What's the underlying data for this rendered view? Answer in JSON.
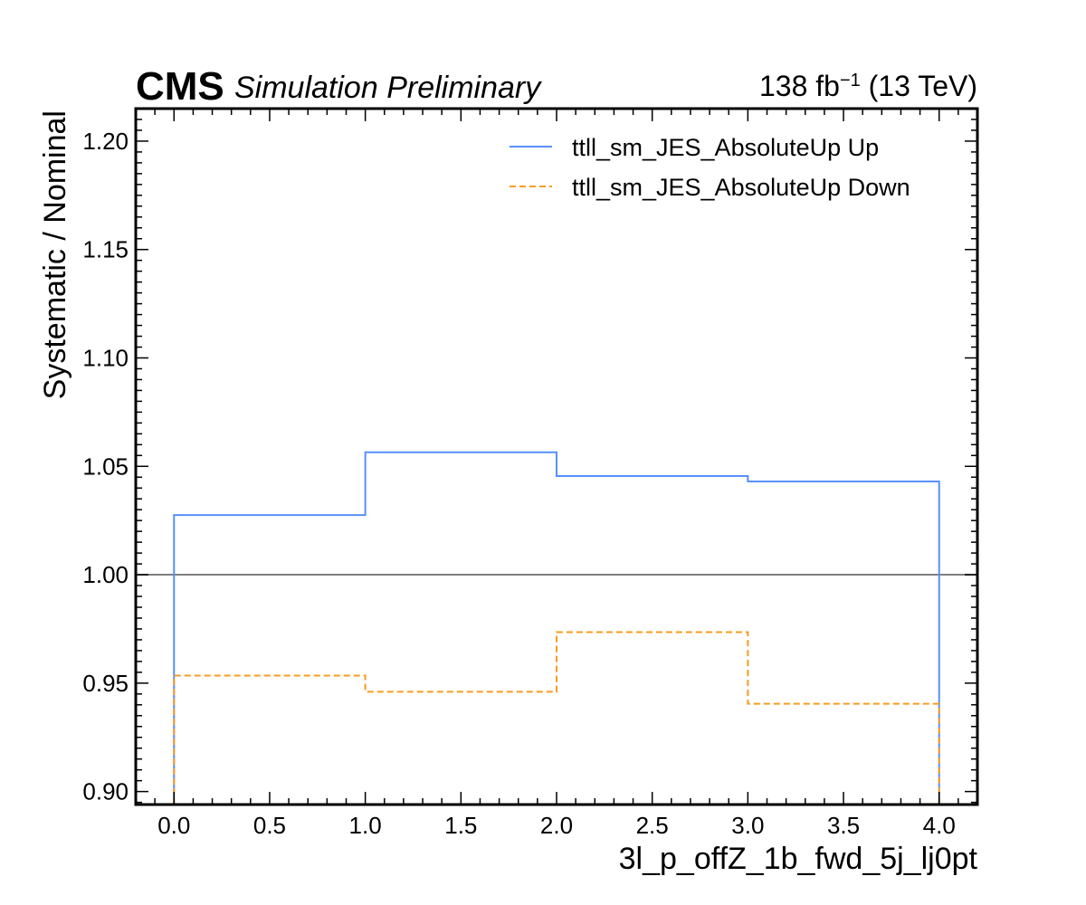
{
  "header": {
    "experiment": "CMS",
    "status": "Simulation Preliminary",
    "lumi_value": "138 fb",
    "lumi_exponent": "−1",
    "energy": " (13 TeV)"
  },
  "chart_data": {
    "type": "line",
    "drawstyle": "steps",
    "xlabel": "3l_p_offZ_1b_fwd_5j_lj0pt",
    "ylabel": "Systematic / Nominal",
    "xlim": [
      -0.2,
      4.2
    ],
    "ylim": [
      0.894,
      1.215
    ],
    "xticks": [
      0.0,
      0.5,
      1.0,
      1.5,
      2.0,
      2.5,
      3.0,
      3.5,
      4.0
    ],
    "xtick_labels": [
      "0.0",
      "0.5",
      "1.0",
      "1.5",
      "2.0",
      "2.5",
      "3.0",
      "3.5",
      "4.0"
    ],
    "yticks": [
      0.9,
      0.95,
      1.0,
      1.05,
      1.1,
      1.15,
      1.2
    ],
    "ytick_labels": [
      "0.90",
      "0.95",
      "1.00",
      "1.05",
      "1.10",
      "1.15",
      "1.20"
    ],
    "bin_edges": [
      0,
      1,
      2,
      3,
      4
    ],
    "reference_line": {
      "y": 1.0,
      "color": "#808080"
    },
    "grid": false,
    "legend_position": "top-right",
    "series": [
      {
        "name": "ttll_sm_JES_AbsoluteUp Up",
        "values": [
          1.0275,
          1.0565,
          1.0455,
          1.043
        ],
        "color": "#5790fc",
        "dash": "solid"
      },
      {
        "name": "ttll_sm_JES_AbsoluteUp Down",
        "values": [
          0.9535,
          0.946,
          0.9735,
          0.9405
        ],
        "color": "#f89c20",
        "dash": "dashed"
      }
    ]
  }
}
